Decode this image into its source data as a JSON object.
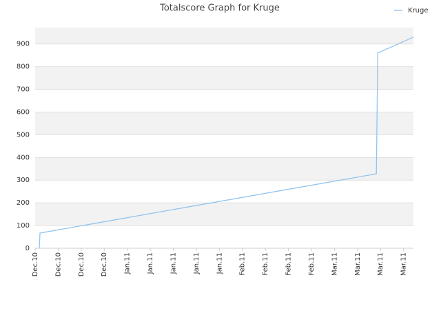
{
  "chart_data": {
    "type": "line",
    "title": "Totalscore Graph for Kruge",
    "x": [
      0.18,
      0.21,
      14.82,
      14.88,
      16.43
    ],
    "series": [
      {
        "name": "Kruge",
        "color": "#90c4f0",
        "values": [
          0,
          67,
          328,
          860,
          930
        ]
      }
    ],
    "xlim": [
      0,
      16.43
    ],
    "xticks": [
      {
        "value": 0,
        "label": "Dec.10"
      },
      {
        "value": 1,
        "label": "Dec.10"
      },
      {
        "value": 2,
        "label": "Dec.10"
      },
      {
        "value": 3,
        "label": "Dec.10"
      },
      {
        "value": 4,
        "label": "Jan.11"
      },
      {
        "value": 5,
        "label": "Jan.11"
      },
      {
        "value": 6,
        "label": "Jan.11"
      },
      {
        "value": 7,
        "label": "Jan.11"
      },
      {
        "value": 8,
        "label": "Jan.11"
      },
      {
        "value": 9,
        "label": "Feb.11"
      },
      {
        "value": 10,
        "label": "Feb.11"
      },
      {
        "value": 11,
        "label": "Feb.11"
      },
      {
        "value": 12,
        "label": "Feb.11"
      },
      {
        "value": 13,
        "label": "Mar.11"
      },
      {
        "value": 14,
        "label": "Mar.11"
      },
      {
        "value": 15,
        "label": "Mar.11"
      },
      {
        "value": 16,
        "label": "Mar.11"
      }
    ],
    "ylim": [
      0,
      972
    ],
    "yticks": [
      0,
      100,
      200,
      300,
      400,
      500,
      600,
      700,
      800,
      900
    ],
    "grid": true,
    "legend": "top-right"
  }
}
